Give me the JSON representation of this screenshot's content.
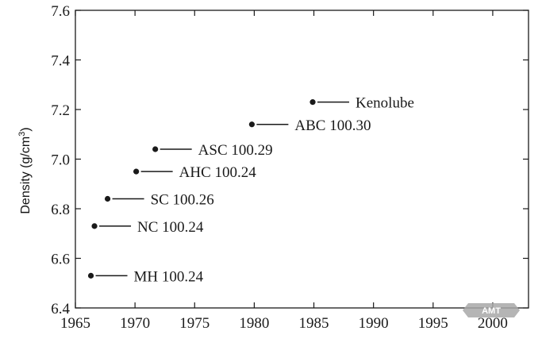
{
  "chart_data": {
    "type": "scatter",
    "title": "",
    "xlabel": "",
    "ylabel": "Density (g/cm",
    "ylabel_superscript": "3",
    "ylabel_suffix": ")",
    "xlim": [
      1965,
      2003
    ],
    "ylim": [
      6.4,
      7.6
    ],
    "x_ticks": [
      1965,
      1970,
      1975,
      1980,
      1985,
      1990,
      1995,
      2000
    ],
    "y_ticks": [
      6.4,
      6.6,
      6.8,
      7.0,
      7.2,
      7.4,
      7.6
    ],
    "y_tick_labels": [
      "6.4",
      "6.6",
      "6.8",
      "7.0",
      "7.2",
      "7.4",
      "7.6"
    ],
    "grid": false,
    "legend": "none",
    "points": [
      {
        "label": "MH 100.24",
        "x": 1966.3,
        "y": 6.53
      },
      {
        "label": "NC 100.24",
        "x": 1966.6,
        "y": 6.73
      },
      {
        "label": "SC 100.26",
        "x": 1967.7,
        "y": 6.84
      },
      {
        "label": "AHC 100.24",
        "x": 1970.1,
        "y": 6.95
      },
      {
        "label": "ASC 100.29",
        "x": 1971.7,
        "y": 7.04
      },
      {
        "label": "ABC 100.30",
        "x": 1979.8,
        "y": 7.14
      },
      {
        "label": "Kenolube",
        "x": 1984.9,
        "y": 7.23
      }
    ],
    "colors": {
      "marker": "#1a1a1a",
      "axis": "#1a1a1a",
      "text": "#1a1a1a"
    }
  },
  "watermark": {
    "text": "AMT",
    "color": "#9a9a9a"
  }
}
